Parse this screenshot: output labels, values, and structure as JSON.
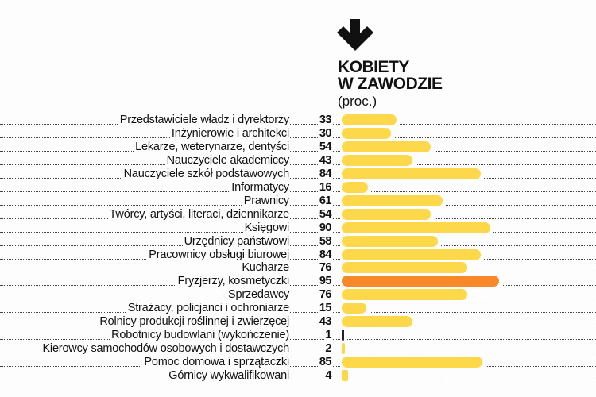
{
  "chart_data": {
    "type": "bar",
    "orientation": "horizontal",
    "title": "KOBIETY W ZAWODZIE",
    "title_lines": [
      "KOBIETY",
      "W ZAWODZIE"
    ],
    "unit": "(proc.)",
    "xlim": [
      0,
      100
    ],
    "grid": false,
    "categories": [
      "Przedstawiciele władz i dyrektorzy",
      "Inżynierowie i architekci",
      "Lekarze, weterynarze, dentyści",
      "Nauczyciele akademiccy",
      "Nauczyciele szkół podstawowych",
      "Informatycy",
      "Prawnicy",
      "Twórcy, artyści, literaci, dziennikarze",
      "Księgowi",
      "Urzędnicy państwowi",
      "Pracownicy obsługi biurowej",
      "Kucharze",
      "Fryzjerzy, kosmetyczki",
      "Sprzedawcy",
      "Strażacy, policjanci i ochroniarze",
      "Rolnicy produkcji roślinnej i zwierzęcej",
      "Robotnicy budowlani (wykończenie)",
      "Kierowcy samochodów osobowych i dostawczych",
      "Pomoc domowa i sprzątaczki",
      "Górnicy wykwalifikowani"
    ],
    "values": [
      33,
      30,
      54,
      43,
      84,
      16,
      61,
      54,
      90,
      58,
      84,
      76,
      95,
      76,
      15,
      43,
      1,
      2,
      85,
      4
    ],
    "colors": {
      "default": "#fdd84a",
      "highlight": "#f7892a",
      "minimal": "#222222"
    },
    "highlight_index": 12
  },
  "decor": {
    "arrow_icon": "arrow-down-icon"
  }
}
